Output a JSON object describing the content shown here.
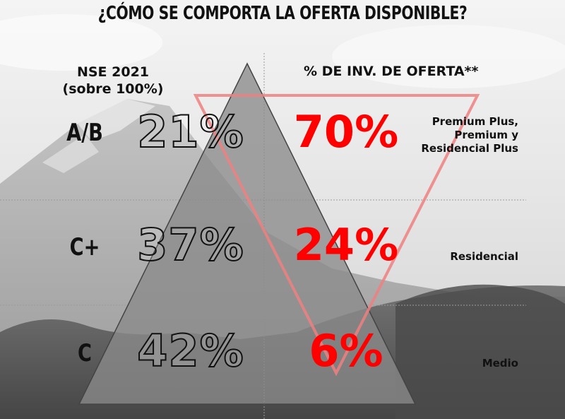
{
  "title": "¿CÓMO SE COMPORTA LA OFERTA DISPONIBLE?",
  "left_header": {
    "line1": "NSE 2021",
    "line2": "(sobre 100%)"
  },
  "right_header": "% DE INV. DE OFERTA**",
  "rows": [
    {
      "nse": "A/B",
      "nse_pct": "21%",
      "oferta_pct": "70%",
      "segment_lines": [
        "Premium Plus,",
        "Premium y",
        "Residencial Plus"
      ]
    },
    {
      "nse": "C+",
      "nse_pct": "37%",
      "oferta_pct": "24%",
      "segment_lines": [
        "Residencial"
      ]
    },
    {
      "nse": "C",
      "nse_pct": "42%",
      "oferta_pct": "6%",
      "segment_lines": [
        "Medio"
      ]
    }
  ],
  "colors": {
    "accent_red": "#ff0000",
    "pyramid_fill": "#8a8a8a",
    "inverted_triangle_stroke": "#f08080",
    "text_dark": "#111111"
  }
}
